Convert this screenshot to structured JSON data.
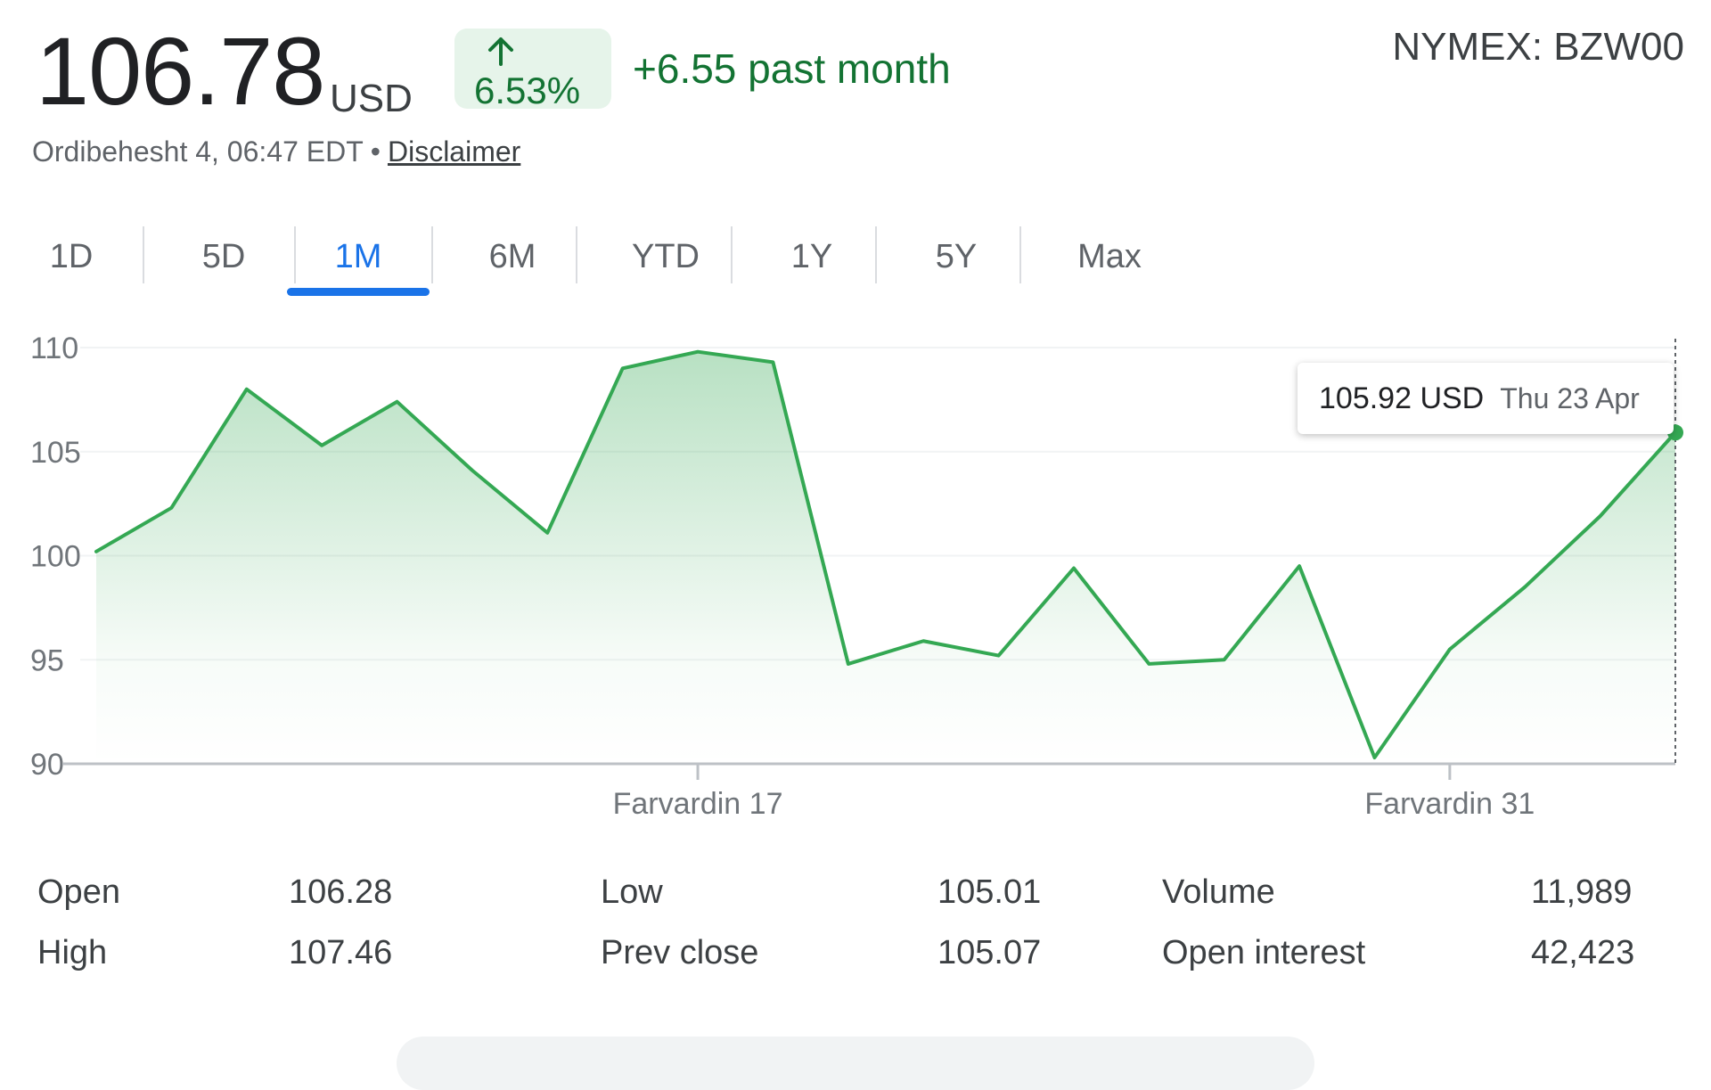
{
  "quote": {
    "price": "106.78",
    "currency": "USD",
    "change_percent": "6.53%",
    "change_period": "+6.55 past month",
    "ticker": "NYMEX: BZW00",
    "timestamp": "Ordibehesht 4, 06:47 EDT",
    "separator": "•",
    "disclaimer_label": "Disclaimer"
  },
  "tabs": [
    {
      "label": "1D",
      "active": false
    },
    {
      "label": "5D",
      "active": false
    },
    {
      "label": "1M",
      "active": true
    },
    {
      "label": "6M",
      "active": false
    },
    {
      "label": "YTD",
      "active": false
    },
    {
      "label": "1Y",
      "active": false
    },
    {
      "label": "5Y",
      "active": false
    },
    {
      "label": "Max",
      "active": false
    }
  ],
  "tooltip": {
    "price": "105.92 USD",
    "date": "Thu 23 Apr"
  },
  "chart_data": {
    "type": "area",
    "title": "",
    "xlabel": "",
    "ylabel": "",
    "ylim": [
      90,
      110
    ],
    "yticks": [
      110,
      105,
      100,
      95,
      90
    ],
    "x_tick_labels": [
      {
        "label": "Farvardin 17",
        "index": 8
      },
      {
        "label": "Farvardin 31",
        "index": 18
      }
    ],
    "grid": true,
    "legend": "none",
    "series": [
      {
        "values": [
          100.2,
          102.3,
          108.0,
          105.3,
          107.4,
          104.1,
          101.1,
          109.0,
          109.8,
          109.3,
          94.8,
          95.9,
          95.2,
          99.4,
          94.8,
          95.0,
          99.5,
          90.3,
          95.5,
          98.5,
          101.9,
          105.92
        ]
      }
    ],
    "colors": {
      "line": "#34a853",
      "fill": "#34a853",
      "axis": "#bdc1c6",
      "grid": "#f1f3f4"
    }
  },
  "stats": [
    [
      {
        "label": "Open",
        "value": "106.28"
      },
      {
        "label": "Low",
        "value": "105.01"
      },
      {
        "label": "Volume",
        "value": "11,989"
      }
    ],
    [
      {
        "label": "High",
        "value": "107.46"
      },
      {
        "label": "Prev close",
        "value": "105.07"
      },
      {
        "label": "Open interest",
        "value": "42,423"
      }
    ]
  ]
}
